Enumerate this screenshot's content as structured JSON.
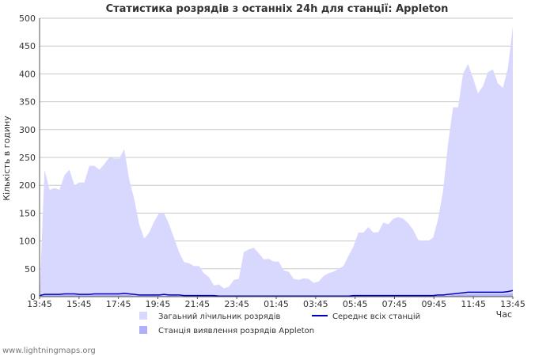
{
  "chart_data": {
    "type": "area",
    "title": "Статистика розрядів з останніх 24h для станції: Appleton",
    "ylabel": "Кількість в годину",
    "xlabel": "Час",
    "ylim": [
      0,
      500
    ],
    "y_ticks": [
      0,
      50,
      100,
      150,
      200,
      250,
      300,
      350,
      400,
      450,
      500
    ],
    "x_ticks": [
      "13:45",
      "15:45",
      "17:45",
      "19:45",
      "21:45",
      "23:45",
      "01:45",
      "03:45",
      "05:45",
      "07:45",
      "09:45",
      "11:45",
      "13:45"
    ],
    "grid": true,
    "series": [
      {
        "name": "Загаьний лічильник розрядів",
        "kind": "area",
        "color": "#d8d8ff",
        "values": [
          0,
          228,
          192,
          195,
          192,
          218,
          228,
          200,
          205,
          205,
          235,
          235,
          228,
          238,
          250,
          248,
          248,
          265,
          210,
          175,
          130,
          104,
          115,
          135,
          150,
          150,
          130,
          105,
          80,
          62,
          60,
          55,
          55,
          42,
          35,
          20,
          22,
          15,
          18,
          30,
          32,
          80,
          85,
          88,
          78,
          67,
          68,
          63,
          63,
          47,
          45,
          32,
          30,
          33,
          32,
          25,
          27,
          37,
          42,
          45,
          50,
          55,
          73,
          90,
          115,
          115,
          125,
          115,
          116,
          133,
          130,
          140,
          143,
          140,
          132,
          120,
          102,
          100,
          100,
          106,
          140,
          190,
          275,
          340,
          340,
          400,
          418,
          393,
          365,
          378,
          403,
          408,
          383,
          375,
          410,
          485
        ]
      },
      {
        "name": "Станція виявлення розрядів Appleton",
        "kind": "area",
        "color": "#b0b0f8",
        "values": [
          0,
          3,
          3,
          3,
          3,
          3,
          3,
          3,
          3,
          3,
          3,
          3,
          3,
          3,
          3,
          3,
          3,
          3,
          3,
          2,
          2,
          2,
          2,
          2,
          2,
          2,
          2,
          2,
          1,
          1,
          1,
          1,
          1,
          1,
          1,
          1,
          1,
          1,
          1,
          1,
          1,
          1,
          1,
          1,
          1,
          1,
          1,
          1,
          1,
          1,
          1,
          1,
          1,
          1,
          1,
          1,
          1,
          1,
          1,
          1,
          1,
          1,
          1,
          1,
          1,
          1,
          1,
          1,
          1,
          1,
          1,
          1,
          1,
          1,
          1,
          1,
          1,
          1,
          1,
          1,
          2,
          2,
          2,
          3,
          3,
          4,
          4,
          4,
          4,
          4,
          4,
          4,
          4,
          4,
          5,
          6
        ]
      },
      {
        "name": "Середнє всіх станцій",
        "kind": "line",
        "color": "#0000bb",
        "values": [
          2,
          4,
          4,
          4,
          4,
          5,
          5,
          5,
          4,
          4,
          4,
          5,
          5,
          5,
          5,
          5,
          5,
          6,
          5,
          4,
          3,
          3,
          3,
          3,
          3,
          4,
          3,
          3,
          3,
          2,
          2,
          2,
          2,
          2,
          2,
          2,
          1,
          1,
          1,
          1,
          1,
          1,
          1,
          1,
          1,
          1,
          1,
          1,
          1,
          1,
          1,
          1,
          1,
          1,
          1,
          1,
          1,
          1,
          1,
          1,
          1,
          1,
          1,
          2,
          2,
          2,
          2,
          2,
          2,
          2,
          2,
          2,
          2,
          2,
          2,
          2,
          2,
          2,
          2,
          2,
          3,
          3,
          4,
          5,
          6,
          7,
          8,
          8,
          8,
          8,
          8,
          8,
          8,
          8,
          9,
          11
        ]
      }
    ],
    "legend_order": [
      0,
      2,
      1
    ]
  },
  "footer": "www.lightningmaps.org"
}
